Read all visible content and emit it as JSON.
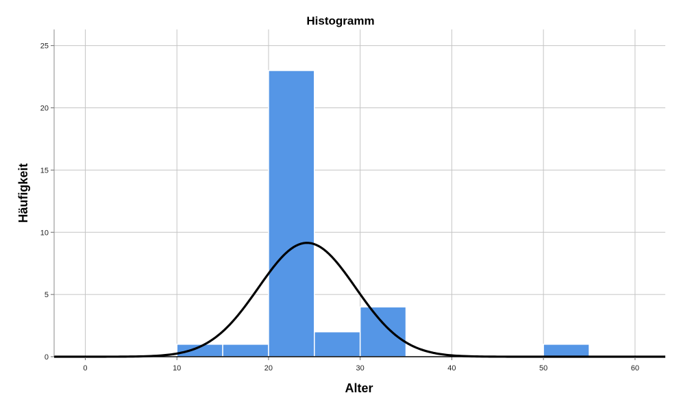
{
  "chart_data": {
    "type": "bar",
    "title": "Histogramm",
    "xlabel": "Alter",
    "ylabel": "Häufigkeit",
    "xlim": [
      -3.4,
      63.3
    ],
    "ylim": [
      0,
      26.3
    ],
    "x_ticks": [
      0,
      10,
      20,
      30,
      40,
      50,
      60
    ],
    "y_ticks": [
      0,
      5,
      10,
      15,
      20,
      25
    ],
    "bin_width": 5,
    "bins": [
      {
        "start": 10,
        "end": 15,
        "count": 1
      },
      {
        "start": 15,
        "end": 20,
        "count": 1
      },
      {
        "start": 20,
        "end": 25,
        "count": 23
      },
      {
        "start": 25,
        "end": 30,
        "count": 2
      },
      {
        "start": 30,
        "end": 35,
        "count": 4
      },
      {
        "start": 50,
        "end": 55,
        "count": 1
      }
    ],
    "normal_curve": {
      "mean": 24.2,
      "peak": 9.15,
      "sd": 5.3
    },
    "grid": true,
    "bar_color": "#5596e6",
    "curve_color": "#000000"
  }
}
